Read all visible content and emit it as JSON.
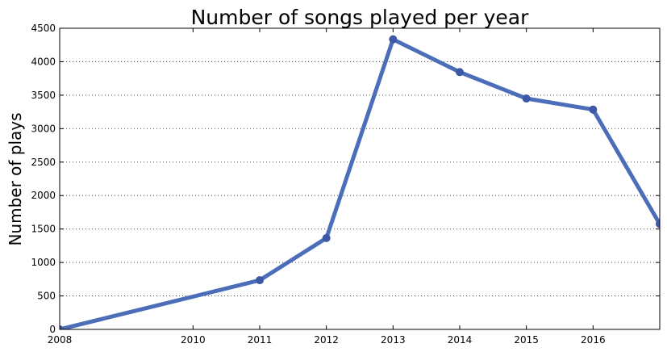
{
  "chart_data": {
    "type": "line",
    "title": "Number of songs played per year",
    "xlabel": "",
    "ylabel": "Number of plays",
    "xlim": [
      2008,
      2017
    ],
    "ylim": [
      0,
      4500
    ],
    "x_ticks": [
      2008,
      2010,
      2011,
      2012,
      2013,
      2014,
      2015,
      2016
    ],
    "x_tick_labels": [
      "2008",
      "2010",
      "2011",
      "2012",
      "2013",
      "2014",
      "2015",
      "2016"
    ],
    "y_ticks": [
      0,
      500,
      1000,
      1500,
      2000,
      2500,
      3000,
      3500,
      4000,
      4500
    ],
    "y_tick_labels": [
      "0",
      "500",
      "1000",
      "1500",
      "2000",
      "2500",
      "3000",
      "3500",
      "4000",
      "4500"
    ],
    "grid": "horizontal dotted",
    "series": [
      {
        "x": [
          2008,
          2011,
          2012,
          2013,
          2014,
          2015,
          2016,
          2017
        ],
        "values": [
          0,
          735,
          1365,
          4335,
          3845,
          3450,
          3285,
          1575
        ],
        "color": "#4c6db8",
        "marker_color": "#3c58a6"
      }
    ]
  }
}
